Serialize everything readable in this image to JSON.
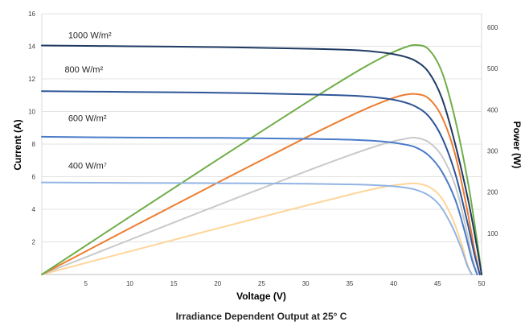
{
  "chart_data": {
    "type": "line",
    "title": "",
    "caption": "Irradiance Dependent Output at 25° C",
    "xlabel": "Voltage (V)",
    "ylabel_left": "Current (A)",
    "ylabel_right": "Power (W)",
    "xlim": [
      0,
      50
    ],
    "ylim_left": [
      0,
      16
    ],
    "ylim_right": [
      0,
      633
    ],
    "x_ticks": [
      5,
      10,
      15,
      20,
      25,
      30,
      35,
      40,
      45,
      50
    ],
    "y_left_ticks": [
      2,
      4,
      6,
      8,
      10,
      12,
      14,
      16
    ],
    "y_right_ticks": [
      100,
      200,
      300,
      400,
      500,
      600
    ],
    "grid": "horizontal",
    "annotations": [
      {
        "text": "1000 W/m²",
        "x": 3,
        "y": 14.5
      },
      {
        "text": "800 W/m²",
        "x": 2.6,
        "y": 12.4
      },
      {
        "text": "600 W/m²",
        "x": 3.0,
        "y": 9.4
      },
      {
        "text": "400 W/m⁷",
        "x": 3.0,
        "y": 6.5
      }
    ],
    "series": [
      {
        "axis": "left",
        "color": "#1f3a63",
        "x": [
          0,
          10,
          20,
          30,
          36,
          39,
          41,
          42.5,
          44,
          45.5,
          47,
          48.5,
          49.5,
          50
        ],
        "values": [
          14.05,
          14.0,
          13.95,
          13.85,
          13.75,
          13.6,
          13.4,
          13.1,
          12.4,
          10.8,
          8.0,
          4.5,
          1.6,
          0
        ]
      },
      {
        "axis": "left",
        "color": "#2e5597",
        "x": [
          0,
          10,
          20,
          30,
          36,
          39,
          41,
          42.5,
          44,
          45.5,
          47,
          48.3,
          49.2,
          49.8
        ],
        "values": [
          11.25,
          11.2,
          11.15,
          11.05,
          10.95,
          10.8,
          10.6,
          10.3,
          9.7,
          8.4,
          6.2,
          3.4,
          1.2,
          0
        ]
      },
      {
        "axis": "left",
        "color": "#4a7cc9",
        "x": [
          0,
          10,
          20,
          30,
          36,
          39,
          41,
          42.5,
          44,
          45.5,
          47,
          48.1,
          48.9,
          49.5
        ],
        "values": [
          8.45,
          8.4,
          8.38,
          8.32,
          8.25,
          8.15,
          8.0,
          7.8,
          7.3,
          6.3,
          4.6,
          2.6,
          0.9,
          0
        ]
      },
      {
        "axis": "left",
        "color": "#93b4e3",
        "x": [
          0,
          10,
          20,
          30,
          36,
          39,
          41,
          42.5,
          44,
          45.3,
          46.6,
          47.7,
          48.4,
          48.9
        ],
        "values": [
          5.65,
          5.62,
          5.6,
          5.57,
          5.52,
          5.45,
          5.35,
          5.2,
          4.85,
          4.2,
          3.0,
          1.6,
          0.5,
          0
        ]
      },
      {
        "axis": "right",
        "color": "#70ad47",
        "x": [
          0,
          10,
          20,
          30,
          36,
          39,
          41,
          42.5,
          44,
          45.5,
          47,
          48.5,
          49.5,
          50
        ],
        "values": [
          0,
          140,
          279,
          416,
          495,
          530,
          549,
          557,
          546,
          491,
          376,
          218,
          79,
          0
        ]
      },
      {
        "axis": "right",
        "color": "#ed7d31",
        "x": [
          0,
          10,
          20,
          30,
          36,
          39,
          41,
          42.5,
          44,
          45.5,
          47,
          48.3,
          49.2,
          49.8
        ],
        "values": [
          0,
          112,
          223,
          332,
          394,
          421,
          435,
          438,
          427,
          382,
          291,
          164,
          59,
          0
        ]
      },
      {
        "axis": "right",
        "color": "#c9c9c9",
        "x": [
          0,
          10,
          20,
          30,
          36,
          39,
          41,
          42.5,
          44,
          45.5,
          47,
          48.1,
          48.9,
          49.5
        ],
        "values": [
          0,
          84,
          168,
          250,
          297,
          318,
          328,
          332,
          321,
          287,
          216,
          125,
          44,
          0
        ]
      },
      {
        "axis": "right",
        "color": "#ffd59a",
        "x": [
          0,
          10,
          20,
          30,
          36,
          39,
          41,
          42.5,
          44,
          45.3,
          46.6,
          47.7,
          48.4,
          48.9
        ],
        "values": [
          0,
          56,
          112,
          167,
          199,
          213,
          219,
          221,
          213,
          190,
          140,
          76,
          24,
          0
        ]
      }
    ]
  }
}
